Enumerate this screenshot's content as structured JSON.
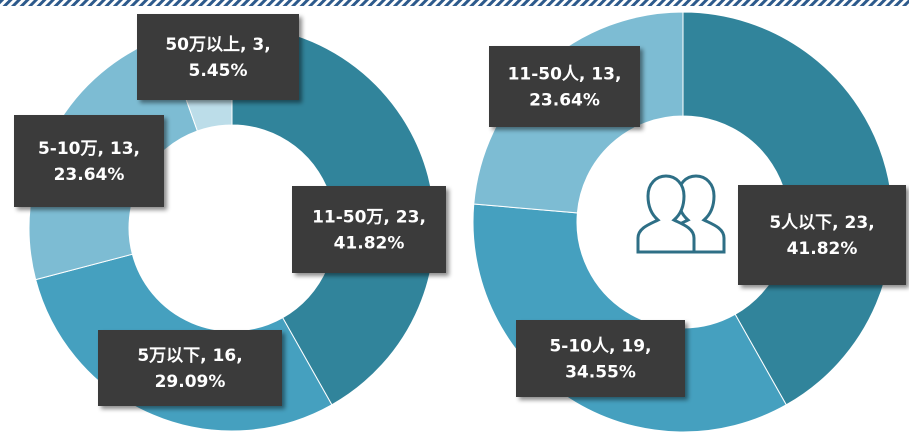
{
  "chart_data": [
    {
      "type": "donut",
      "categories": [
        "11-50万",
        "5万以下",
        "5-10万",
        "50万以上"
      ],
      "values": [
        23,
        16,
        13,
        3
      ],
      "value_labels": [
        "11-50万, 23,\n41.82%",
        "5万以下, 16,\n29.09%",
        "5-10万, 13,\n23.64%",
        "50万以上, 3,\n5.45%"
      ],
      "colors": [
        "#31849b",
        "#45a0bf",
        "#7dbcd3",
        "#bcdde9"
      ]
    },
    {
      "type": "donut",
      "categories": [
        "5人以下",
        "5-10人",
        "11-50人"
      ],
      "values": [
        23,
        19,
        13
      ],
      "value_labels": [
        "5人以下, 23,\n41.82%",
        "5-10人, 19,\n34.55%",
        "11-50人, 13,\n23.64%"
      ],
      "colors": [
        "#31849b",
        "#45a0bf",
        "#7dbcd3"
      ]
    }
  ]
}
